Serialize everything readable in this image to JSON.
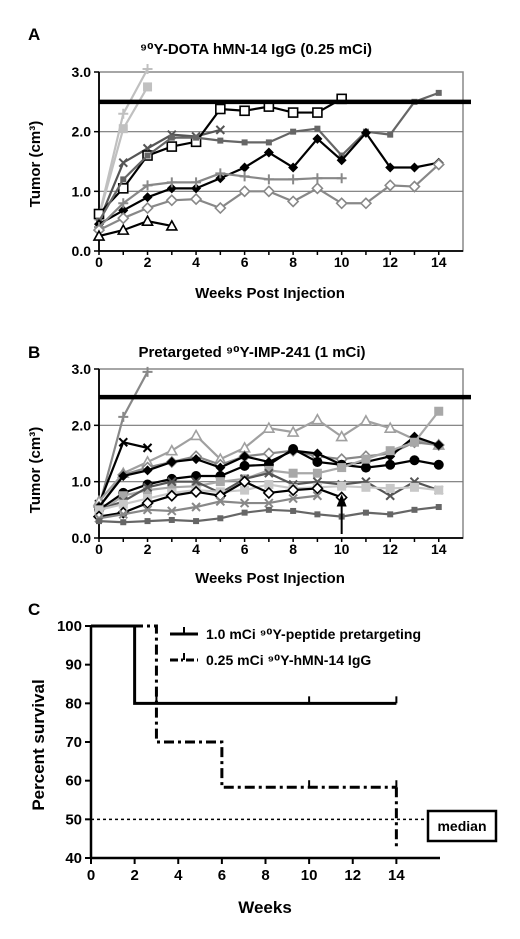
{
  "chart_data": [
    {
      "panel": "A",
      "type": "line",
      "title": "⁹⁰Y-DOTA hMN-14 IgG (0.25 mCi)",
      "xlabel": "Weeks Post Injection",
      "ylabel": "Tumor (cm³)",
      "xlim": [
        0,
        15
      ],
      "ylim": [
        0,
        3.0
      ],
      "xticks": [
        "0",
        "2",
        "4",
        "6",
        "8",
        "10",
        "12",
        "14"
      ],
      "yticks": [
        "0.0",
        "1.0",
        "2.0",
        "3.0"
      ],
      "threshold": 2.5,
      "grid": "horizontal",
      "series": [
        {
          "marker": "plus",
          "color": "#c0c0c0",
          "x": [
            0,
            1,
            2
          ],
          "y": [
            0.58,
            2.3,
            3.05
          ]
        },
        {
          "marker": "square",
          "color": "#c0c0c0",
          "x": [
            0,
            1,
            2
          ],
          "y": [
            0.58,
            2.05,
            2.75
          ]
        },
        {
          "marker": "x",
          "color": "#555555",
          "x": [
            0,
            1,
            2,
            3,
            4,
            5
          ],
          "y": [
            0.5,
            1.48,
            1.72,
            1.95,
            1.92,
            2.03
          ]
        },
        {
          "marker": "open-square",
          "color": "#000000",
          "x": [
            0,
            1,
            2,
            3,
            4,
            5,
            6,
            7,
            8,
            9,
            10
          ],
          "y": [
            0.62,
            1.05,
            1.6,
            1.75,
            1.83,
            2.38,
            2.35,
            2.42,
            2.32,
            2.32,
            2.55
          ]
        },
        {
          "marker": "small-square",
          "color": "#666666",
          "x": [
            0,
            1,
            2,
            3,
            4,
            5,
            6,
            7,
            8,
            9,
            10,
            11,
            12,
            13,
            14
          ],
          "y": [
            0.5,
            1.2,
            1.6,
            1.9,
            1.9,
            1.85,
            1.82,
            1.82,
            2.0,
            2.05,
            1.6,
            2.0,
            1.95,
            2.5,
            2.65
          ]
        },
        {
          "marker": "diamond",
          "color": "#000000",
          "x": [
            0,
            1,
            2,
            3,
            4,
            5,
            6,
            7,
            8,
            9,
            10,
            11,
            12,
            13,
            14
          ],
          "y": [
            0.45,
            0.68,
            0.9,
            1.05,
            1.05,
            1.22,
            1.4,
            1.65,
            1.4,
            1.88,
            1.52,
            1.98,
            1.4,
            1.4,
            1.48
          ]
        },
        {
          "marker": "plus",
          "color": "#888888",
          "x": [
            0,
            1,
            2,
            3,
            4,
            5,
            6,
            7,
            8,
            9,
            10
          ],
          "y": [
            0.4,
            0.8,
            1.1,
            1.15,
            1.15,
            1.3,
            1.25,
            1.2,
            1.2,
            1.22,
            1.22
          ]
        },
        {
          "marker": "open-diamond",
          "color": "#888888",
          "x": [
            0,
            1,
            2,
            3,
            4,
            5,
            6,
            7,
            8,
            9,
            10,
            11,
            12,
            13,
            14
          ],
          "y": [
            0.35,
            0.55,
            0.72,
            0.85,
            0.87,
            0.72,
            1.0,
            1.0,
            0.83,
            1.05,
            0.8,
            0.8,
            1.1,
            1.08,
            1.45
          ]
        },
        {
          "marker": "open-triangle",
          "color": "#000000",
          "x": [
            0,
            1,
            2,
            3
          ],
          "y": [
            0.25,
            0.35,
            0.5,
            0.42
          ]
        }
      ]
    },
    {
      "panel": "B",
      "type": "line",
      "title": "Pretargeted ⁹⁰Y-IMP-241 (1 mCi)",
      "xlabel": "Weeks Post Injection",
      "ylabel": "Tumor (cm³)",
      "xlim": [
        0,
        15
      ],
      "ylim": [
        0,
        3.0
      ],
      "xticks": [
        "0",
        "2",
        "4",
        "6",
        "8",
        "10",
        "12",
        "14"
      ],
      "yticks": [
        "0.0",
        "1.0",
        "2.0",
        "3.0"
      ],
      "threshold": 2.5,
      "grid": "horizontal",
      "annotation_arrow_x": 10,
      "series": [
        {
          "marker": "plus",
          "color": "#888888",
          "x": [
            0,
            1,
            2
          ],
          "y": [
            0.55,
            2.15,
            2.95
          ]
        },
        {
          "marker": "x",
          "color": "#000000",
          "x": [
            0,
            1,
            2
          ],
          "y": [
            0.6,
            1.7,
            1.6
          ]
        },
        {
          "marker": "open-triangle",
          "color": "#a0a0a0",
          "x": [
            0,
            1,
            2,
            3,
            4,
            5,
            6,
            7,
            8,
            9,
            10,
            11,
            12,
            13,
            14
          ],
          "y": [
            0.65,
            1.15,
            1.35,
            1.55,
            1.82,
            1.4,
            1.6,
            1.95,
            1.88,
            2.1,
            1.8,
            2.08,
            1.95,
            1.75,
            1.65
          ]
        },
        {
          "marker": "open-diamond",
          "color": "#888888",
          "x": [
            0,
            1,
            2,
            3,
            4,
            5,
            6,
            7,
            8,
            9,
            10,
            11,
            12,
            13,
            14
          ],
          "y": [
            0.55,
            1.12,
            1.25,
            1.35,
            1.45,
            1.3,
            1.45,
            1.5,
            1.55,
            1.45,
            1.4,
            1.45,
            1.5,
            1.7,
            1.65
          ]
        },
        {
          "marker": "diamond",
          "color": "#000000",
          "x": [
            0,
            1,
            2,
            3,
            4,
            5,
            6,
            7,
            8,
            9,
            10,
            11,
            12,
            13,
            14
          ],
          "y": [
            0.55,
            1.1,
            1.2,
            1.35,
            1.4,
            1.25,
            1.45,
            1.35,
            1.55,
            1.5,
            1.3,
            1.35,
            1.45,
            1.8,
            1.65
          ]
        },
        {
          "marker": "circle",
          "color": "#000000",
          "x": [
            0,
            1,
            2,
            3,
            4,
            5,
            6,
            7,
            8,
            9,
            10,
            11,
            12,
            13,
            14
          ],
          "y": [
            0.5,
            0.8,
            0.95,
            1.05,
            1.1,
            1.1,
            1.28,
            1.3,
            1.58,
            1.35,
            1.3,
            1.25,
            1.3,
            1.38,
            1.3
          ]
        },
        {
          "marker": "square",
          "color": "#a8a8a8",
          "x": [
            0,
            1,
            2,
            3,
            4,
            5,
            6,
            7,
            8,
            9,
            10,
            11,
            12,
            13,
            14
          ],
          "y": [
            0.45,
            0.75,
            0.85,
            0.9,
            0.92,
            1.0,
            1.05,
            1.2,
            1.15,
            1.15,
            1.25,
            1.4,
            1.55,
            1.7,
            2.25
          ]
        },
        {
          "marker": "x",
          "color": "#555555",
          "x": [
            0,
            1,
            2,
            3,
            4,
            5,
            6,
            7,
            8,
            9,
            10,
            11,
            12,
            13,
            14
          ],
          "y": [
            0.5,
            0.65,
            0.9,
            1.0,
            1.0,
            0.8,
            1.05,
            1.15,
            0.95,
            1.0,
            0.95,
            1.0,
            0.75,
            1.0,
            0.85
          ]
        },
        {
          "marker": "square",
          "color": "#c8c8c8",
          "x": [
            0,
            1,
            2,
            3,
            4,
            5,
            6,
            7,
            8,
            9,
            10,
            11,
            12,
            13,
            14
          ],
          "y": [
            0.5,
            0.6,
            0.7,
            0.8,
            0.85,
            0.82,
            0.85,
            0.95,
            0.88,
            0.9,
            0.92,
            0.9,
            0.88,
            0.9,
            0.85
          ]
        },
        {
          "marker": "open-diamond",
          "color": "#000000",
          "x": [
            0,
            1,
            2,
            3,
            4,
            5,
            6,
            7,
            8,
            9,
            10
          ],
          "y": [
            0.38,
            0.45,
            0.62,
            0.75,
            0.82,
            0.75,
            1.0,
            0.8,
            0.85,
            0.88,
            0.72
          ]
        },
        {
          "marker": "x",
          "color": "#888888",
          "x": [
            0,
            1,
            2,
            3,
            4,
            5,
            6,
            7,
            8,
            9
          ],
          "y": [
            0.35,
            0.42,
            0.5,
            0.48,
            0.55,
            0.65,
            0.62,
            0.62,
            0.7,
            0.75
          ]
        },
        {
          "marker": "small-square",
          "color": "#666666",
          "x": [
            0,
            1,
            2,
            3,
            4,
            5,
            6,
            7,
            8,
            9,
            10,
            11,
            12,
            13,
            14
          ],
          "y": [
            0.3,
            0.28,
            0.3,
            0.32,
            0.3,
            0.35,
            0.45,
            0.5,
            0.48,
            0.42,
            0.38,
            0.45,
            0.42,
            0.5,
            0.55
          ]
        }
      ]
    },
    {
      "panel": "C",
      "type": "line",
      "title": "",
      "xlabel": "Weeks",
      "ylabel": "Percent survival",
      "xlim": [
        0,
        16
      ],
      "ylim": [
        40,
        100
      ],
      "xticks": [
        "0",
        "2",
        "4",
        "6",
        "8",
        "10",
        "12",
        "14"
      ],
      "yticks": [
        "40",
        "50",
        "60",
        "70",
        "80",
        "90",
        "100"
      ],
      "legend_position": "top-right",
      "median_line": 50,
      "median_label": "median",
      "series": [
        {
          "name": "1.0 mCi ⁹⁰Y-peptide pretargeting",
          "style": "solid",
          "step_x": [
            0,
            2,
            14
          ],
          "step_y": [
            100,
            80,
            80
          ],
          "censored_x": [
            3,
            10,
            14
          ]
        },
        {
          "name": "0.25 mCi ⁹⁰Y-hMN-14 IgG",
          "style": "dash-dot",
          "step_x": [
            0,
            3,
            6,
            14
          ],
          "step_y": [
            100,
            70,
            58.3,
            58.3
          ],
          "censored_x": [
            10,
            14
          ]
        }
      ]
    }
  ]
}
